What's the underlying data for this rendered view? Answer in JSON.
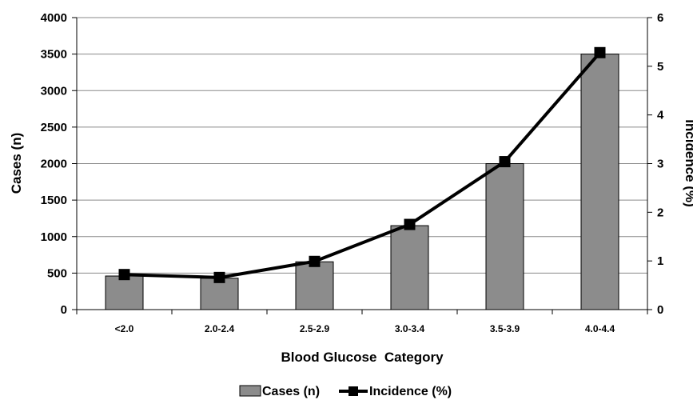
{
  "chart_data": {
    "type": "bar",
    "categories": [
      "<2.0",
      "2.0-2.4",
      "2.5-2.9",
      "3.0-3.4",
      "3.5-3.9",
      "4.0-4.4"
    ],
    "xlabel": "Blood Glucose  Category",
    "ylabel": "Cases (n)",
    "ylabel_right": "Incidence (%)",
    "ylim": [
      0,
      4000
    ],
    "ylim_right": [
      0,
      6
    ],
    "yticks": [
      0,
      500,
      1000,
      1500,
      2000,
      2500,
      3000,
      3500,
      4000
    ],
    "yticks_right": [
      0,
      1,
      2,
      3,
      4,
      5,
      6
    ],
    "grid": true,
    "legend_position": "bottom",
    "series": [
      {
        "name": "Cases (n)",
        "type": "bar",
        "axis": "left",
        "color": "#8c8c8c",
        "values": [
          460,
          430,
          655,
          1150,
          2000,
          3500
        ]
      },
      {
        "name": "Incidence (%)",
        "type": "line",
        "axis": "right",
        "color": "#000000",
        "values": [
          0.72,
          0.66,
          0.99,
          1.75,
          3.04,
          5.28
        ]
      }
    ]
  }
}
